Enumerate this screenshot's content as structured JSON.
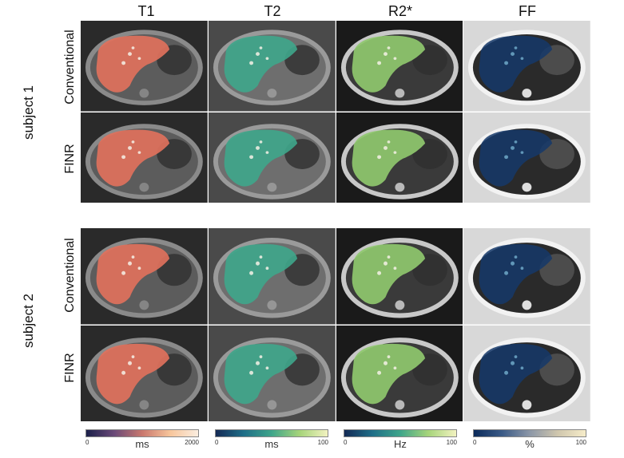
{
  "columns": [
    "T1",
    "T2",
    "R2*",
    "FF"
  ],
  "subjects": [
    {
      "label": "subject 1",
      "rows": [
        "Conventional",
        "FINR"
      ]
    },
    {
      "label": "subject 2",
      "rows": [
        "Conventional",
        "FINR"
      ]
    }
  ],
  "colorbars": [
    {
      "unit": "ms",
      "min": "0",
      "max": "2000",
      "colors": [
        "#1b1f4a",
        "#6a4a78",
        "#c9786e",
        "#f7c59b",
        "#fbeee0"
      ]
    },
    {
      "unit": "ms",
      "min": "0",
      "max": "100",
      "colors": [
        "#142a55",
        "#1f6e88",
        "#3fa58a",
        "#a6d47a",
        "#f2f2c0"
      ]
    },
    {
      "unit": "Hz",
      "min": "0",
      "max": "100",
      "colors": [
        "#142a55",
        "#1f6e88",
        "#3fa58a",
        "#a6d47a",
        "#f2f2c0"
      ]
    },
    {
      "unit": "%",
      "min": "0",
      "max": "100",
      "colors": [
        "#0b2a5a",
        "#3a5a86",
        "#8c97a8",
        "#cfc6ad",
        "#f6ecc9"
      ]
    }
  ],
  "overlay_colors": {
    "T1": "#e0715c",
    "T2": "#3fa58a",
    "R2*": "#8fc86e",
    "FF": "#15386a"
  }
}
